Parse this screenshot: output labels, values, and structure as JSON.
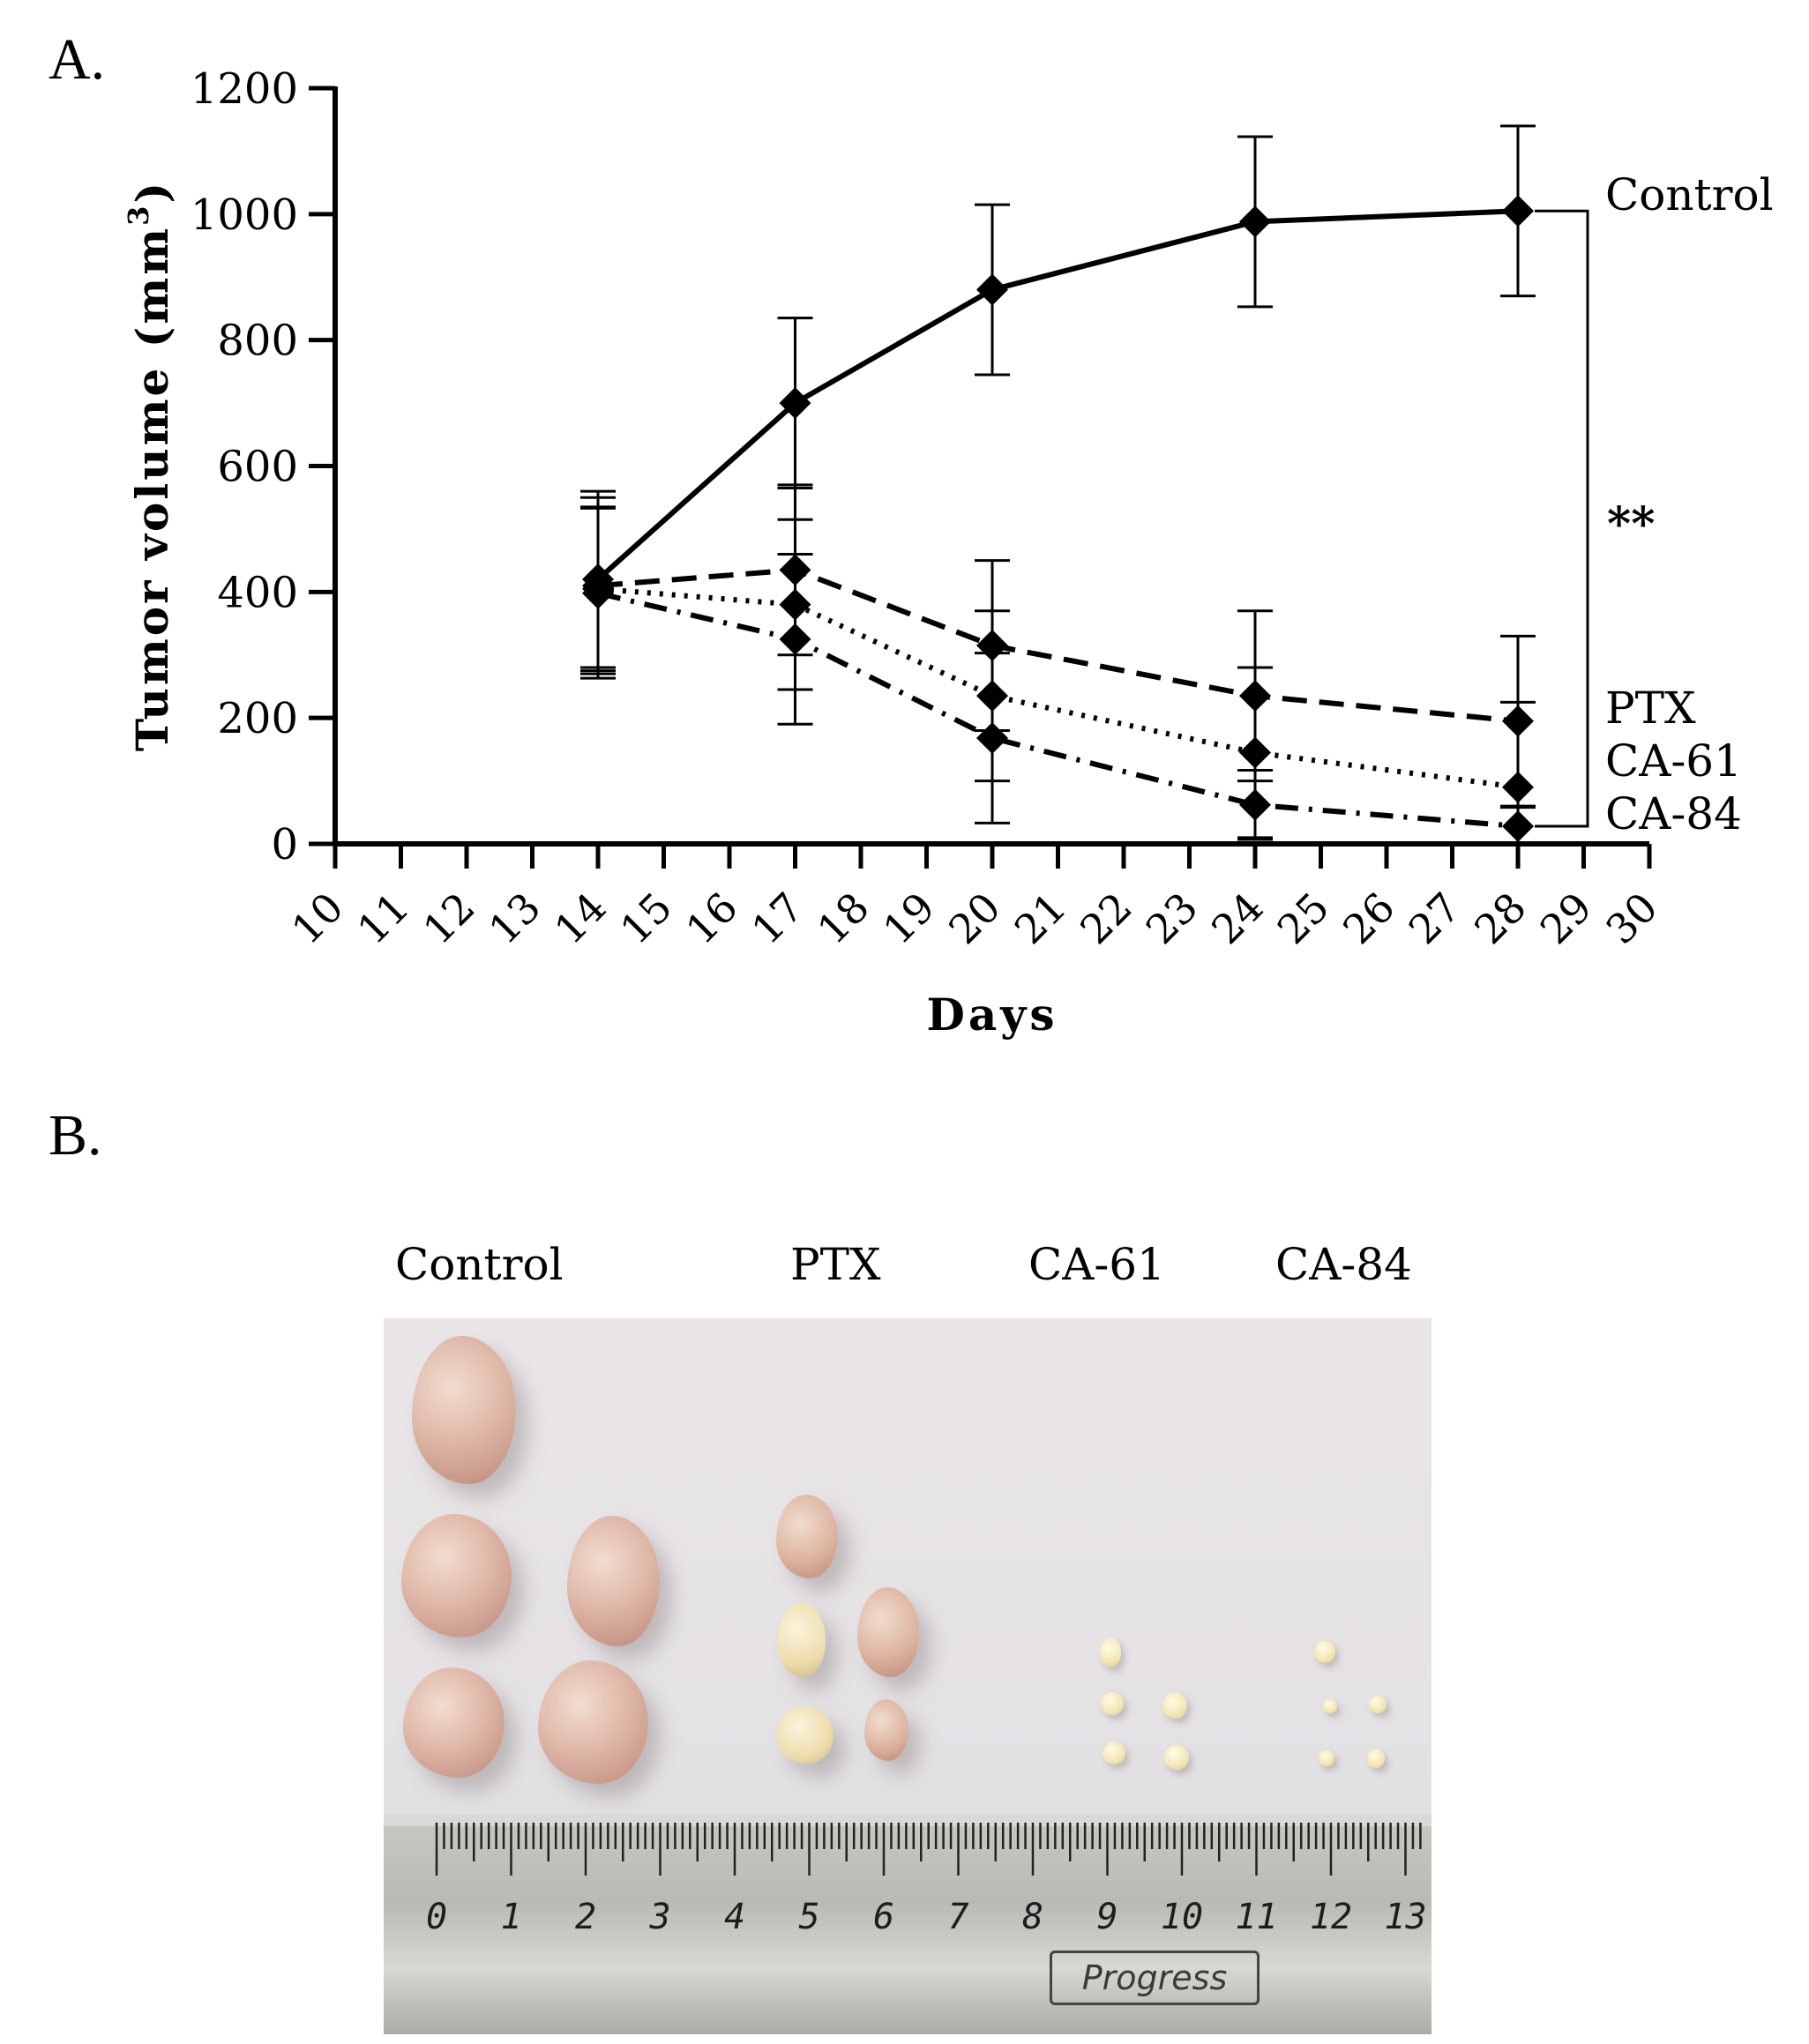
{
  "panel_a_label": "A.",
  "panel_b_label": "B.",
  "chart_data": {
    "type": "line",
    "xlabel": "Days",
    "ylabel": "Tumor volume (mm",
    "ylabel_superscript": "3",
    "ylabel_close": ")",
    "xlim": [
      10,
      30
    ],
    "ylim": [
      0,
      1200
    ],
    "x_ticks": [
      "10",
      "11",
      "12",
      "13",
      "14",
      "15",
      "16",
      "17",
      "18",
      "19",
      "20",
      "21",
      "22",
      "23",
      "24",
      "25",
      "26",
      "27",
      "28",
      "29",
      "30"
    ],
    "y_ticks": [
      "0",
      "200",
      "400",
      "600",
      "800",
      "1000",
      "1200"
    ],
    "significance": "**",
    "series": [
      {
        "name": "Control",
        "style": "solid",
        "x": [
          14,
          17,
          20,
          24,
          28
        ],
        "values": [
          420,
          700,
          880,
          988,
          1005
        ],
        "errors": [
          140,
          135,
          135,
          135,
          135
        ]
      },
      {
        "name": "PTX",
        "style": "dashed",
        "x": [
          14,
          17,
          20,
          24,
          28
        ],
        "values": [
          410,
          435,
          315,
          235,
          195
        ],
        "errors": [
          140,
          135,
          135,
          135,
          135
        ]
      },
      {
        "name": "CA-61",
        "style": "dotted",
        "x": [
          14,
          17,
          20,
          24,
          28
        ],
        "values": [
          405,
          380,
          235,
          145,
          90
        ],
        "errors": [
          130,
          135,
          135,
          135,
          135
        ]
      },
      {
        "name": "CA-84",
        "style": "dashdot",
        "x": [
          14,
          17,
          20,
          24,
          28
        ],
        "values": [
          398,
          325,
          168,
          62,
          28
        ],
        "errors": [
          135,
          135,
          135,
          55,
          30
        ]
      }
    ]
  },
  "photo": {
    "captions": [
      "Control",
      "PTX",
      "CA-61",
      "CA-84"
    ],
    "ruler_numbers": [
      "0",
      "1",
      "2",
      "3",
      "4",
      "5",
      "6",
      "7",
      "8",
      "9",
      "10",
      "11",
      "12",
      "13"
    ],
    "ruler_brand": "Progress"
  }
}
